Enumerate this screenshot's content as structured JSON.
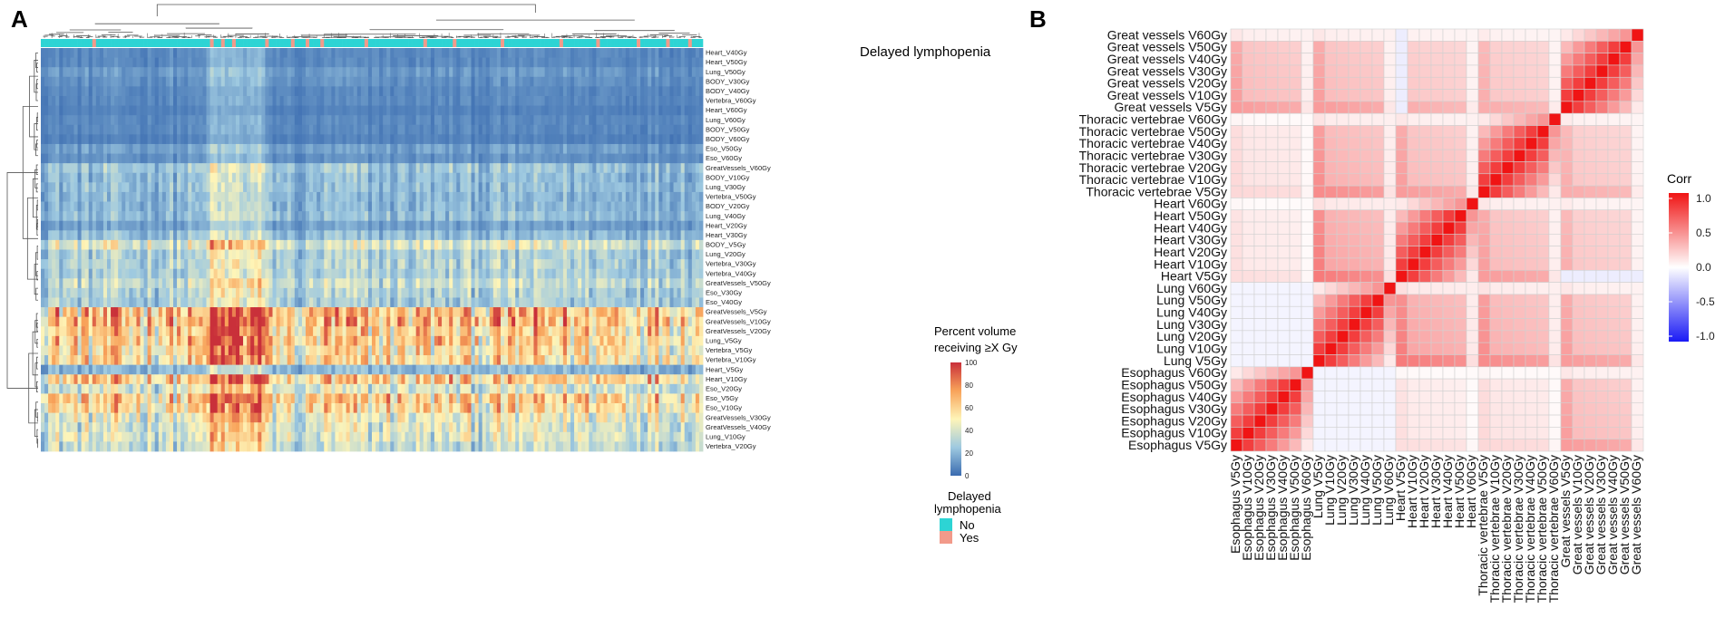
{
  "panel_a": {
    "letter": "A",
    "annotation_label": "Delayed lymphopenia",
    "colorbar_title_line1": "Percent volume",
    "colorbar_title_line2": "receiving ≥X Gy",
    "legend_title_line1": "Delayed",
    "legend_title_line2": "lymphopenia",
    "legend_items": [
      {
        "label": "No",
        "color": "#2dd4d4"
      },
      {
        "label": "Yes",
        "color": "#f29a8a"
      }
    ]
  },
  "panel_b": {
    "letter": "B",
    "legend_title": "Corr"
  },
  "chart_data": [
    {
      "type": "heatmap",
      "title": "",
      "row_labels": [
        "Heart_V40Gy",
        "Heart_V50Gy",
        "Lung_V50Gy",
        "BODY_V30Gy",
        "BODY_V40Gy",
        "Vertebra_V60Gy",
        "Heart_V60Gy",
        "Lung_V60Gy",
        "BODY_V50Gy",
        "BODY_V60Gy",
        "Eso_V50Gy",
        "Eso_V60Gy",
        "GreatVessels_V60Gy",
        "BODY_V10Gy",
        "Lung_V30Gy",
        "Vertebra_V50Gy",
        "BODY_V20Gy",
        "Lung_V40Gy",
        "Heart_V20Gy",
        "Heart_V30Gy",
        "BODY_V5Gy",
        "Lung_V20Gy",
        "Vertebra_V30Gy",
        "Vertebra_V40Gy",
        "GreatVessels_V50Gy",
        "Eso_V30Gy",
        "Eso_V40Gy",
        "GreatVessels_V5Gy",
        "GreatVessels_V10Gy",
        "GreatVessels_V20Gy",
        "Lung_V5Gy",
        "Vertebra_V5Gy",
        "Vertebra_V10Gy",
        "Heart_V5Gy",
        "Heart_V10Gy",
        "Eso_V20Gy",
        "Eso_V5Gy",
        "Eso_V10Gy",
        "GreatVessels_V30Gy",
        "GreatVessels_V40Gy",
        "Lung_V10Gy",
        "Vertebra_V20Gy"
      ],
      "row_mean_values": [
        8,
        8,
        12,
        10,
        8,
        8,
        6,
        8,
        8,
        6,
        14,
        10,
        25,
        22,
        22,
        20,
        20,
        22,
        14,
        22,
        40,
        28,
        30,
        28,
        35,
        30,
        28,
        65,
        65,
        60,
        60,
        55,
        55,
        20,
        60,
        40,
        60,
        55,
        45,
        40,
        40,
        35
      ],
      "n_columns": 180,
      "high_dose_columns": [
        45,
        60
      ],
      "delayed_lymphopenia_yes_columns": [
        14,
        46,
        49,
        52,
        61,
        68,
        72,
        76,
        88,
        104,
        112,
        125,
        141,
        151,
        162,
        170,
        176
      ],
      "colorbar": {
        "min": 0,
        "max": 100,
        "ticks": [
          "0",
          "20",
          "40",
          "60",
          "80",
          "100"
        ],
        "colors": [
          "#3a6bb0",
          "#9ec9e0",
          "#fef5b8",
          "#f8a35a",
          "#c9303a"
        ]
      }
    },
    {
      "type": "heatmap",
      "title": "",
      "labels": [
        "Esophagus V5Gy",
        "Esophagus V10Gy",
        "Esophagus V20Gy",
        "Esophagus V30Gy",
        "Esophagus V40Gy",
        "Esophagus V50Gy",
        "Esophagus V60Gy",
        "Lung V5Gy",
        "Lung V10Gy",
        "Lung V20Gy",
        "Lung V30Gy",
        "Lung V40Gy",
        "Lung V50Gy",
        "Lung V60Gy",
        "Heart V5Gy",
        "Heart V10Gy",
        "Heart V20Gy",
        "Heart V30Gy",
        "Heart V40Gy",
        "Heart V50Gy",
        "Heart V60Gy",
        "Thoracic vertebrae V5Gy",
        "Thoracic vertebrae V10Gy",
        "Thoracic vertebrae V20Gy",
        "Thoracic vertebrae V30Gy",
        "Thoracic vertebrae V40Gy",
        "Thoracic vertebrae V50Gy",
        "Thoracic vertebrae V60Gy",
        "Great vessels V5Gy",
        "Great vessels V10Gy",
        "Great vessels V20Gy",
        "Great vessels V30Gy",
        "Great vessels V40Gy",
        "Great vessels V50Gy",
        "Great vessels V60Gy"
      ],
      "groups": [
        "Esophagus",
        "Lung",
        "Heart",
        "Thoracic vertebrae",
        "Great vessels"
      ],
      "group_size": 7,
      "legend": {
        "title": "Corr",
        "min": -1.0,
        "max": 1.0,
        "ticks": [
          "1.0",
          "0.5",
          "0.0",
          "-0.5",
          "-1.0"
        ]
      }
    }
  ]
}
